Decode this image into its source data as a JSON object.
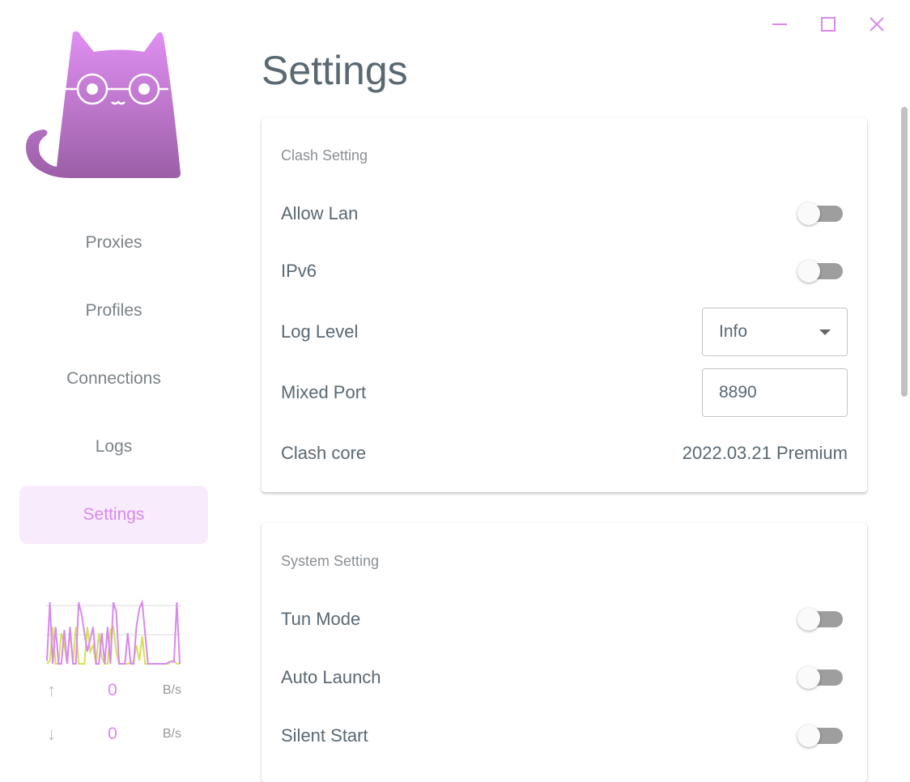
{
  "window_controls": {
    "minimize": "minimize-icon",
    "maximize": "maximize-icon",
    "close": "close-icon"
  },
  "sidebar": {
    "items": [
      {
        "label": "Proxies"
      },
      {
        "label": "Profiles"
      },
      {
        "label": "Connections"
      },
      {
        "label": "Logs"
      },
      {
        "label": "Settings",
        "active": true
      }
    ]
  },
  "traffic": {
    "upload": {
      "value": "0",
      "unit": "B/s",
      "icon": "arrow-up-icon"
    },
    "download": {
      "value": "0",
      "unit": "B/s",
      "icon": "arrow-down-icon"
    },
    "series_purple": [
      0.05,
      1,
      0,
      0.6,
      0,
      0,
      0.55,
      0,
      0.6,
      0,
      0,
      1,
      0.8,
      0.5,
      0.2,
      0.4,
      0.6,
      0,
      0,
      0.5,
      0,
      0.6,
      0,
      1,
      0.85,
      0,
      0,
      0,
      0.5,
      0,
      0,
      0.6,
      0.9,
      1,
      0.5,
      0,
      0,
      0,
      0,
      0,
      0,
      0,
      0.02,
      0.04,
      0.03,
      1,
      0
    ],
    "series_yellow": [
      0,
      0.05,
      0.6,
      0,
      0,
      0.5,
      0.3,
      0,
      0.55,
      0,
      0.6,
      0,
      0,
      0,
      0.6,
      0.2,
      0.3,
      0,
      0.5,
      0.1,
      0,
      0,
      0.55,
      0.6,
      0.2,
      0,
      0,
      0,
      0,
      0.02,
      0.05,
      0.3,
      0.05,
      0.45,
      0,
      0,
      0,
      0,
      0,
      0,
      0,
      0,
      0,
      0.04,
      0.05,
      0,
      0
    ],
    "colors": {
      "purple": "#d988ee",
      "yellow": "#d4e157"
    }
  },
  "page": {
    "title": "Settings"
  },
  "clash_setting": {
    "title": "Clash Setting",
    "allow_lan": {
      "label": "Allow Lan",
      "enabled": false
    },
    "ipv6": {
      "label": "IPv6",
      "enabled": false
    },
    "log_level": {
      "label": "Log Level",
      "value": "Info"
    },
    "mixed_port": {
      "label": "Mixed Port",
      "value": "8890"
    },
    "clash_core": {
      "label": "Clash core",
      "value": "2022.03.21 Premium"
    }
  },
  "system_setting": {
    "title": "System Setting",
    "tun_mode": {
      "label": "Tun Mode",
      "enabled": false
    },
    "auto_launch": {
      "label": "Auto Launch",
      "enabled": false
    },
    "silent_start": {
      "label": "Silent Start",
      "enabled": false
    }
  },
  "accent": "#d988ee"
}
